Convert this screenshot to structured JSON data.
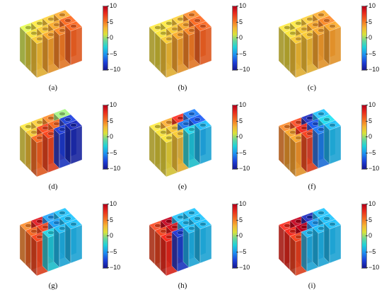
{
  "colorbar": {
    "ticks": [
      "10",
      "5",
      "0",
      "−5",
      "−10"
    ],
    "tick_values": [
      10,
      5,
      0,
      -5,
      -10
    ],
    "range": [
      -10,
      10
    ]
  },
  "grid": {
    "rows": 3,
    "cols": 4
  },
  "panels": [
    {
      "label": "(a)",
      "values": [
        [
          3,
          4,
          5,
          6
        ],
        [
          2,
          3,
          4,
          6
        ],
        [
          1,
          2,
          3,
          4
        ]
      ]
    },
    {
      "label": "(b)",
      "values": [
        [
          3,
          4,
          5,
          6
        ],
        [
          2,
          3,
          4,
          6
        ],
        [
          2,
          2,
          3,
          5
        ]
      ]
    },
    {
      "label": "(c)",
      "values": [
        [
          3,
          3,
          4,
          4
        ],
        [
          2,
          3,
          4,
          5
        ],
        [
          2,
          2,
          3,
          4
        ]
      ]
    },
    {
      "label": "(d)",
      "values": [
        [
          6,
          7,
          -8,
          -9
        ],
        [
          3,
          7,
          6,
          -8
        ],
        [
          2,
          3,
          5,
          0
        ]
      ]
    },
    {
      "label": "(e)",
      "values": [
        [
          2,
          3,
          -3,
          -4
        ],
        [
          2,
          3,
          -6,
          -7
        ],
        [
          2,
          4,
          8,
          -6
        ]
      ]
    },
    {
      "label": "(f)",
      "values": [
        [
          4,
          7,
          -6,
          -4
        ],
        [
          4,
          8,
          -7,
          -3
        ],
        [
          5,
          7,
          -9,
          -4
        ]
      ]
    },
    {
      "label": "(g)",
      "values": [
        [
          7,
          -3,
          -4,
          -4
        ],
        [
          6,
          7,
          -5,
          -4
        ],
        [
          5,
          9,
          -5,
          -4
        ]
      ]
    },
    {
      "label": "(h)",
      "values": [
        [
          8,
          -8,
          -4,
          -4
        ],
        [
          7,
          9,
          -4,
          -4
        ],
        [
          7,
          10,
          -4,
          -4
        ]
      ]
    },
    {
      "label": "(i)",
      "values": [
        [
          7,
          -4,
          -4,
          -4
        ],
        [
          8,
          10,
          -5,
          -4
        ],
        [
          8,
          10,
          -9,
          -4
        ]
      ]
    }
  ]
}
